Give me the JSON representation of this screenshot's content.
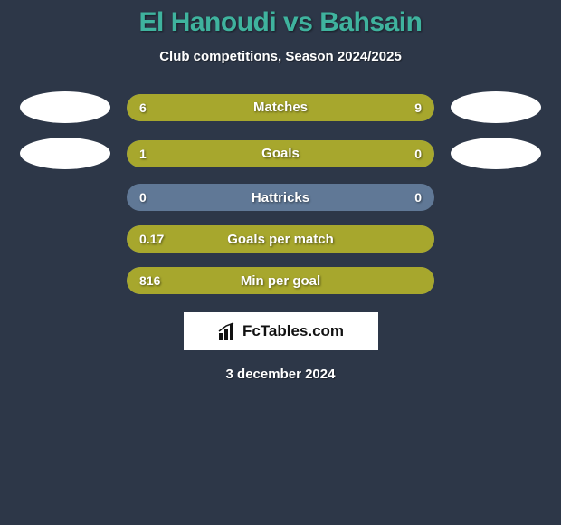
{
  "title_color": "#3fb39e",
  "bg_color": "#2d3748",
  "fill_color": "#a7a72d",
  "neutral_color": "#607896",
  "ellipse_left_color": "#ffffff",
  "ellipse_right_color": "#ffffff",
  "player1": "El Hanoudi",
  "vs": "vs",
  "player2": "Bahsain",
  "subtitle": "Club competitions, Season 2024/2025",
  "rows": [
    {
      "label": "Matches",
      "left_val": "6",
      "right_val": "9",
      "left_pct": 40,
      "right_pct": 60,
      "show_ellipses": true
    },
    {
      "label": "Goals",
      "left_val": "1",
      "right_val": "0",
      "left_pct": 78,
      "right_pct": 22,
      "show_ellipses": true
    },
    {
      "label": "Hattricks",
      "left_val": "0",
      "right_val": "0",
      "left_pct": 0,
      "right_pct": 0,
      "show_ellipses": false
    },
    {
      "label": "Goals per match",
      "left_val": "0.17",
      "right_val": "",
      "left_pct": 100,
      "right_pct": 0,
      "show_ellipses": false
    },
    {
      "label": "Min per goal",
      "left_val": "816",
      "right_val": "",
      "left_pct": 100,
      "right_pct": 0,
      "show_ellipses": false
    }
  ],
  "logo_text": "FcTables.com",
  "date": "3 december 2024"
}
